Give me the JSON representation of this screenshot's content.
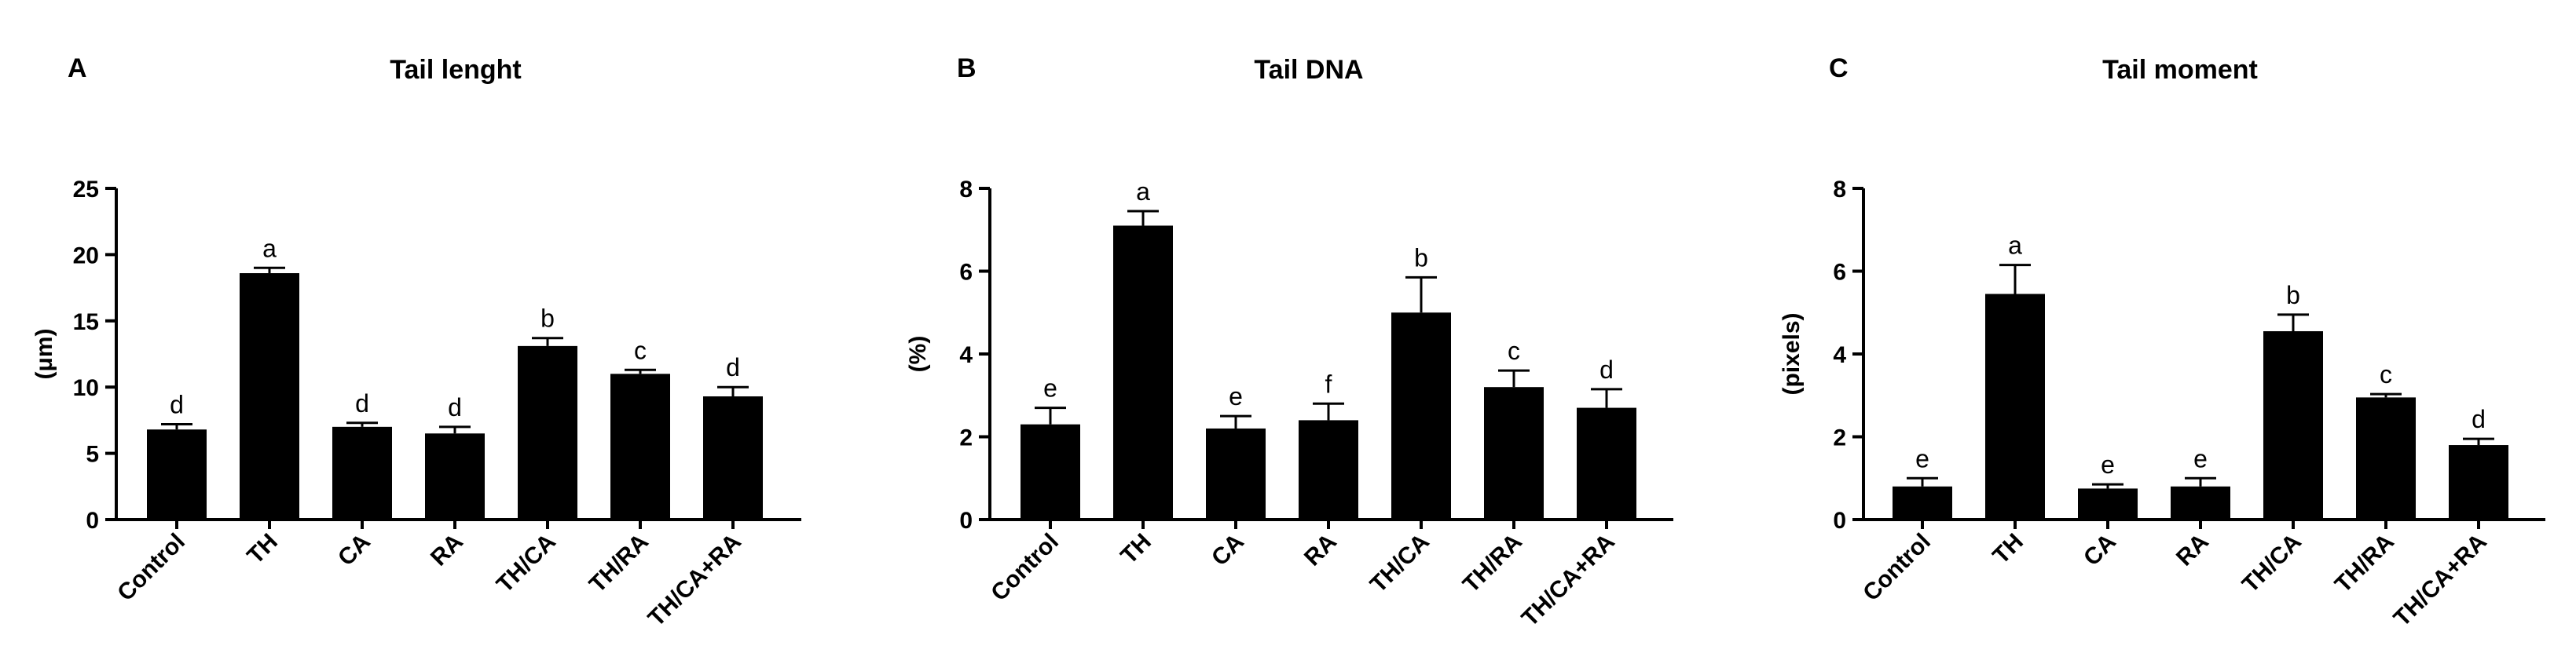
{
  "chart_data": [
    {
      "type": "bar",
      "panel_label": "A",
      "title": "Tail lenght",
      "xlabel": "",
      "ylabel": "(μm)",
      "ylim": [
        0,
        25
      ],
      "yticks": [
        0,
        5,
        10,
        15,
        20,
        25
      ],
      "categories": [
        "Control",
        "TH",
        "CA",
        "RA",
        "TH/CA",
        "TH/RA",
        "TH/CA+RA"
      ],
      "values": [
        6.8,
        18.6,
        7.0,
        6.5,
        13.1,
        11.0,
        9.3
      ],
      "errors": [
        0.4,
        0.4,
        0.3,
        0.5,
        0.6,
        0.3,
        0.7
      ],
      "significance_letters": [
        "d",
        "a",
        "d",
        "d",
        "b",
        "c",
        "d"
      ],
      "bar_color": "#000000"
    },
    {
      "type": "bar",
      "panel_label": "B",
      "title": "Tail DNA",
      "xlabel": "",
      "ylabel": "(%)",
      "ylim": [
        0,
        8
      ],
      "yticks": [
        0,
        2,
        4,
        6,
        8
      ],
      "categories": [
        "Control",
        "TH",
        "CA",
        "RA",
        "TH/CA",
        "TH/RA",
        "TH/CA+RA"
      ],
      "values": [
        2.3,
        7.1,
        2.2,
        2.4,
        5.0,
        3.2,
        2.7
      ],
      "errors": [
        0.4,
        0.35,
        0.3,
        0.4,
        0.85,
        0.4,
        0.45
      ],
      "significance_letters": [
        "e",
        "a",
        "e",
        "f",
        "b",
        "c",
        "d"
      ],
      "bar_color": "#000000"
    },
    {
      "type": "bar",
      "panel_label": "C",
      "title": "Tail moment",
      "xlabel": "",
      "ylabel": "(pixels)",
      "ylim": [
        0,
        8
      ],
      "yticks": [
        0,
        2,
        4,
        6,
        8
      ],
      "categories": [
        "Control",
        "TH",
        "CA",
        "RA",
        "TH/CA",
        "TH/RA",
        "TH/CA+RA"
      ],
      "values": [
        0.8,
        5.45,
        0.75,
        0.8,
        4.55,
        2.95,
        1.8
      ],
      "errors": [
        0.2,
        0.7,
        0.1,
        0.2,
        0.4,
        0.08,
        0.15
      ],
      "significance_letters": [
        "e",
        "a",
        "e",
        "e",
        "b",
        "c",
        "d"
      ],
      "bar_color": "#000000"
    }
  ]
}
